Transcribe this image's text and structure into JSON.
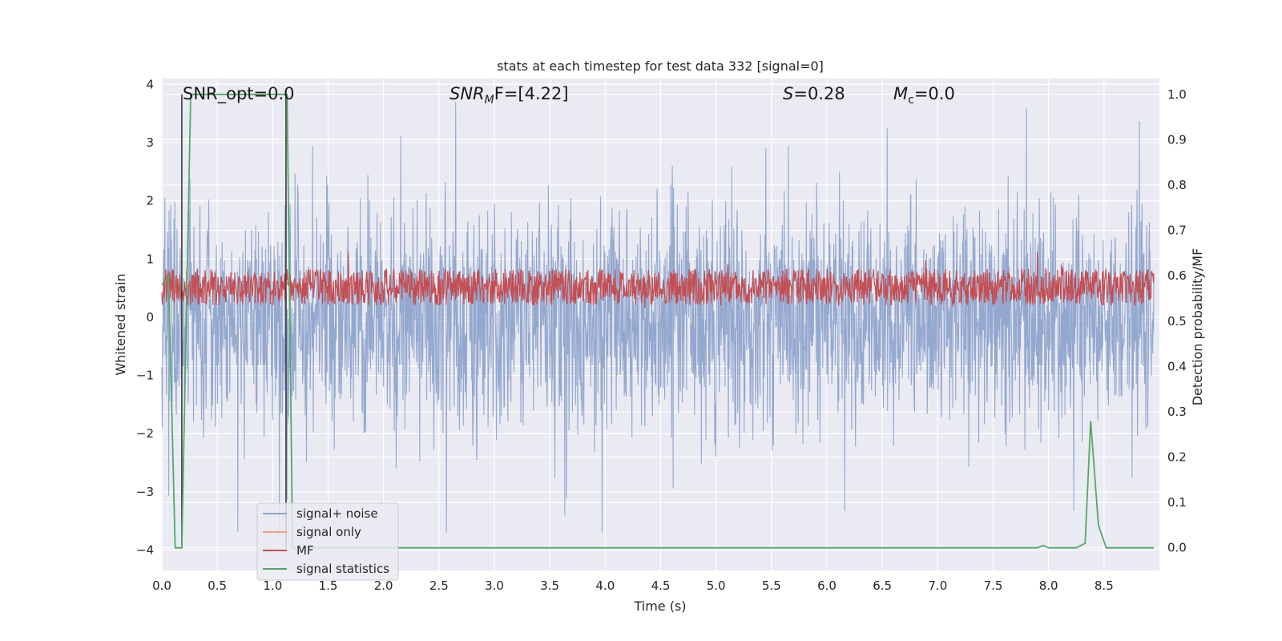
{
  "chart_data": {
    "type": "line",
    "title": "stats at each timestep for test data 332 [signal=0]",
    "xlabel": "Time (s)",
    "ylabel_left": "Whitened strain",
    "ylabel_right": "Detection probability/MF",
    "xlim": [
      0.0,
      9.0
    ],
    "ylim_left": [
      -4.35,
      4.1
    ],
    "ylim_right": [
      -0.05,
      1.035
    ],
    "x_ticks": [
      "0.0",
      "0.5",
      "1.0",
      "1.5",
      "2.0",
      "2.5",
      "3.0",
      "3.5",
      "4.0",
      "4.5",
      "5.0",
      "5.5",
      "6.0",
      "6.5",
      "7.0",
      "7.5",
      "8.0",
      "8.5"
    ],
    "y_ticks_left": [
      "4",
      "3",
      "2",
      "1",
      "0",
      "−1",
      "−2",
      "−3",
      "−4"
    ],
    "y_ticks_right": [
      "1.0",
      "0.9",
      "0.8",
      "0.7",
      "0.6",
      "0.5",
      "0.4",
      "0.3",
      "0.2",
      "0.1",
      "0.0"
    ],
    "grid": true,
    "legend_position": "lower-left",
    "annotations": {
      "snr_opt": "SNR_opt=0.0",
      "snr_mf_main": "SNR",
      "snr_mf_sub": "M",
      "snr_mf_tail": "F=[4.22]",
      "s_main": "S",
      "s_tail": "=0.28",
      "mc_main": "M",
      "mc_sub": "c",
      "mc_tail": "=0.0"
    },
    "series": [
      {
        "name": "signal+ noise",
        "axis": "left",
        "color": "#8fa4cc",
        "description_values": "random noise, typical amplitude ±1.4, peaks to about ±3.7",
        "noise_envelope": [
          -3.7,
          3.7
        ]
      },
      {
        "name": "signal only",
        "axis": "left",
        "color": "#e8a483",
        "values": []
      },
      {
        "name": "MF",
        "axis": "right",
        "color": "#c44e52",
        "noise_envelope": [
          0.53,
          0.62
        ]
      },
      {
        "name": "signal statistics",
        "axis": "right",
        "color": "#55a868",
        "x": [
          0.0,
          0.06,
          0.12,
          0.18,
          0.26,
          0.33,
          1.09,
          1.13,
          1.18,
          1.3,
          7.9,
          7.95,
          8.0,
          8.25,
          8.33,
          8.38,
          8.45,
          8.52,
          8.95
        ],
        "y": [
          0.58,
          0.6,
          0.0,
          0.0,
          1.0,
          1.0,
          1.0,
          1.0,
          0.0,
          0.0,
          0.0,
          0.005,
          0.0,
          0.0,
          0.01,
          0.28,
          0.05,
          0.0,
          0.0
        ]
      }
    ],
    "markers": {
      "color": "#3a3a3a",
      "vertical_lines_x": [
        0.18,
        1.12
      ]
    }
  }
}
